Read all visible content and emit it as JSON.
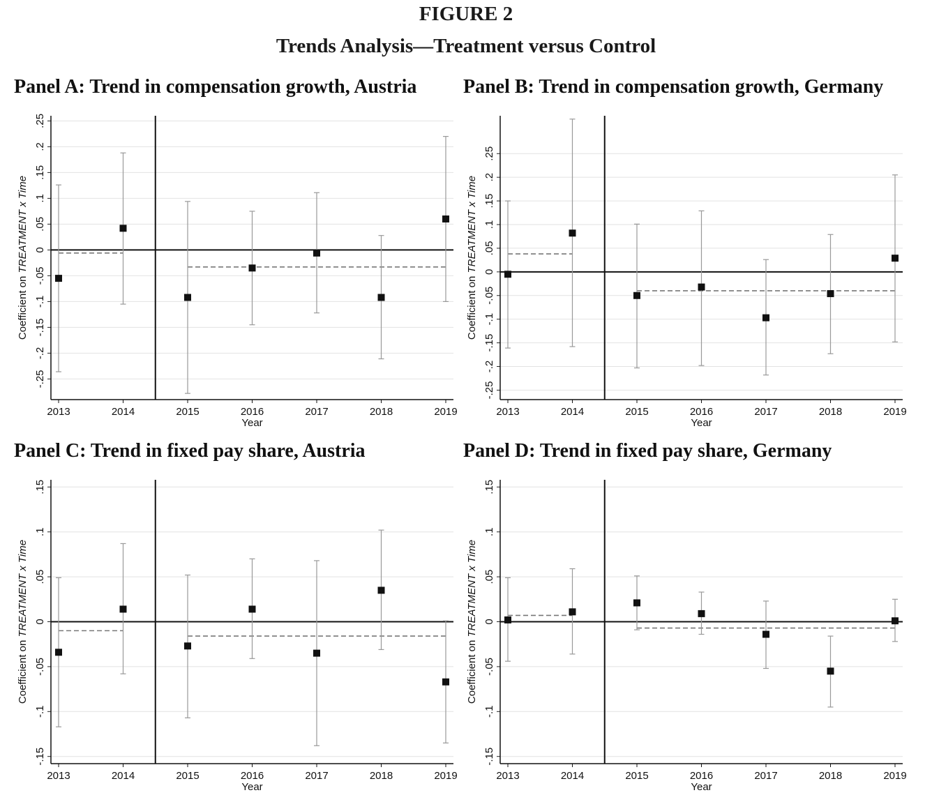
{
  "figure": {
    "number": "FIGURE 2",
    "subtitle": "Trends Analysis—Treatment versus Control"
  },
  "chart_data": [
    {
      "type": "scatter",
      "title": "Panel A: Trend in compensation growth, Austria",
      "xlabel": "Year",
      "ylabel_prefix": "Coefficient on ",
      "ylabel_italic": "TREATMENT x Time",
      "categories": [
        "2013",
        "2014",
        "2015",
        "2016",
        "2017",
        "2018",
        "2019"
      ],
      "yticks": [
        ".25",
        ".2",
        ".15",
        ".1",
        ".05",
        "0",
        "-.05",
        "-.1",
        "-.15",
        "-.2",
        "-.25"
      ],
      "ylim": [
        -0.29,
        0.26
      ],
      "values": [
        -0.055,
        0.042,
        -0.092,
        -0.035,
        -0.006,
        -0.092,
        0.06
      ],
      "ci_low": [
        -0.236,
        -0.105,
        -0.278,
        -0.145,
        -0.122,
        -0.211,
        -0.1
      ],
      "ci_high": [
        0.126,
        0.188,
        0.094,
        0.075,
        0.111,
        0.028,
        0.22
      ],
      "pre_mean": -0.006,
      "post_mean": -0.033,
      "treatment_break_after": "2014",
      "grid": true
    },
    {
      "type": "scatter",
      "title": "Panel B: Trend in compensation growth, Germany",
      "xlabel": "Year",
      "ylabel_prefix": "Coefficient on ",
      "ylabel_italic": "TREATMENT x Time",
      "categories": [
        "2013",
        "2014",
        "2015",
        "2016",
        "2017",
        "2018",
        "2019"
      ],
      "yticks": [
        ".25",
        ".2",
        ".15",
        ".1",
        ".05",
        "0",
        "-.05",
        "-.1",
        "-.15",
        "-.2",
        "-.25"
      ],
      "ylim": [
        -0.27,
        0.33
      ],
      "values": [
        -0.005,
        0.082,
        -0.05,
        -0.032,
        -0.097,
        -0.046,
        0.029
      ],
      "ci_low": [
        -0.161,
        -0.158,
        -0.203,
        -0.198,
        -0.218,
        -0.173,
        -0.148
      ],
      "ci_high": [
        0.15,
        0.323,
        0.101,
        0.129,
        0.026,
        0.079,
        0.205
      ],
      "pre_mean": 0.038,
      "post_mean": -0.04,
      "treatment_break_after": "2014",
      "grid": true
    },
    {
      "type": "scatter",
      "title": "Panel C: Trend in fixed pay share, Austria",
      "xlabel": "Year",
      "ylabel_prefix": "Coefficient on ",
      "ylabel_italic": "TREATMENT x Time",
      "categories": [
        "2013",
        "2014",
        "2015",
        "2016",
        "2017",
        "2018",
        "2019"
      ],
      "yticks": [
        ".15",
        ".1",
        ".05",
        "0",
        "-.05",
        "-.1",
        "-.15"
      ],
      "ylim": [
        -0.158,
        0.158
      ],
      "values": [
        -0.034,
        0.014,
        -0.027,
        0.014,
        -0.035,
        0.035,
        -0.067
      ],
      "ci_low": [
        -0.117,
        -0.058,
        -0.107,
        -0.041,
        -0.138,
        -0.031,
        -0.135
      ],
      "ci_high": [
        0.049,
        0.087,
        0.052,
        0.07,
        0.068,
        0.102,
        0.001
      ],
      "pre_mean": -0.01,
      "post_mean": -0.016,
      "treatment_break_after": "2014",
      "grid": true
    },
    {
      "type": "scatter",
      "title": "Panel D: Trend in fixed pay share, Germany",
      "xlabel": "Year",
      "ylabel_prefix": "Coefficient on ",
      "ylabel_italic": "TREATMENT x Time",
      "categories": [
        "2013",
        "2014",
        "2015",
        "2016",
        "2017",
        "2018",
        "2019"
      ],
      "yticks": [
        ".15",
        ".1",
        ".05",
        "0",
        "-.05",
        "-.1",
        "-.15"
      ],
      "ylim": [
        -0.158,
        0.158
      ],
      "values": [
        0.002,
        0.011,
        0.021,
        0.009,
        -0.014,
        -0.055,
        0.001
      ],
      "ci_low": [
        -0.044,
        -0.036,
        -0.009,
        -0.014,
        -0.052,
        -0.095,
        -0.022
      ],
      "ci_high": [
        0.049,
        0.059,
        0.051,
        0.033,
        0.023,
        -0.016,
        0.025
      ],
      "pre_mean": 0.007,
      "post_mean": -0.007,
      "treatment_break_after": "2014",
      "grid": true
    }
  ]
}
